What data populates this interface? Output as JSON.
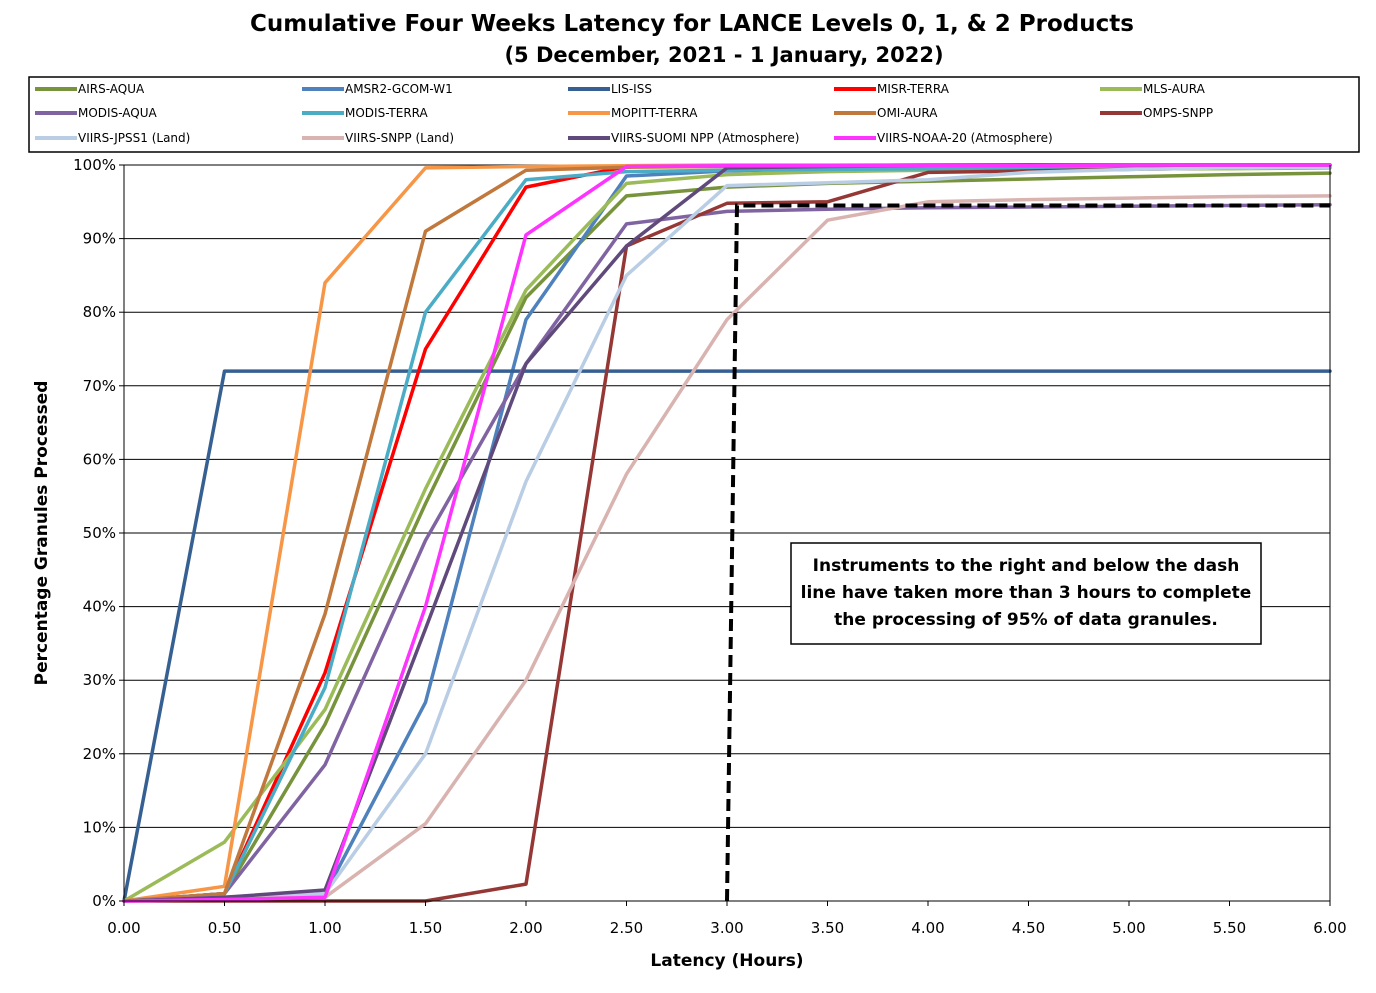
{
  "chart_data": {
    "type": "line",
    "title": "Cumulative Four Weeks Latency  for LANCE Levels 0, 1, & 2 Products",
    "subtitle": "(5 December, 2021  -  1 January, 2022)",
    "xlabel": "Latency (Hours)",
    "ylabel": "Percentage Granules Processed",
    "xlim": [
      0,
      6
    ],
    "ylim": [
      0,
      100
    ],
    "x_ticks": [
      "0.00",
      "0.50",
      "1.00",
      "1.50",
      "2.00",
      "2.50",
      "3.00",
      "3.50",
      "4.00",
      "4.50",
      "5.00",
      "5.50",
      "6.00"
    ],
    "y_ticks": [
      "0%",
      "10%",
      "20%",
      "30%",
      "40%",
      "50%",
      "60%",
      "70%",
      "80%",
      "90%",
      "100%"
    ],
    "grid": "horizontal",
    "legend_position": "top",
    "annotation": {
      "lines": [
        "Instruments to the right and below the dash",
        "line have taken more than 3 hours to complete",
        "the processing of 95% of data granules."
      ]
    },
    "threshold_line": {
      "x": [
        3.0,
        3.05,
        3.05,
        6.0
      ],
      "y": [
        0,
        94.5,
        94.5,
        94.5
      ]
    },
    "series": [
      {
        "name": "AIRS-AQUA",
        "color": "#77933c",
        "x": [
          0,
          0.5,
          1,
          1.5,
          2,
          2.5,
          3,
          3.5,
          4,
          4.5,
          5,
          5.5,
          6
        ],
        "y": [
          0,
          1,
          24,
          54,
          82,
          95.8,
          97,
          97.5,
          97.8,
          98.1,
          98.4,
          98.7,
          98.9
        ]
      },
      {
        "name": "AMSR2-GCOM-W1",
        "color": "#4f81bd",
        "x": [
          0,
          0.5,
          1,
          1.5,
          2,
          2.5,
          3,
          3.5,
          4,
          4.5,
          5,
          5.5,
          6
        ],
        "y": [
          0,
          0.5,
          1,
          27,
          79,
          98.5,
          99.2,
          99.5,
          99.6,
          99.7,
          99.8,
          99.8,
          99.9
        ]
      },
      {
        "name": "LIS-ISS",
        "color": "#376092",
        "x": [
          0,
          0.5,
          1,
          1.5,
          2,
          2.5,
          3,
          3.5,
          4,
          4.5,
          5,
          5.5,
          6
        ],
        "y": [
          0,
          72,
          72,
          72,
          72,
          72,
          72,
          72,
          72,
          72,
          72,
          72,
          72
        ]
      },
      {
        "name": "MISR-TERRA",
        "color": "#ff0000",
        "x": [
          0,
          0.5,
          1,
          1.5,
          2,
          2.5,
          3,
          3.5,
          4,
          4.5,
          5,
          5.5,
          6
        ],
        "y": [
          0,
          1,
          31,
          75,
          97,
          99.8,
          99.9,
          99.9,
          100,
          100,
          100,
          100,
          100
        ]
      },
      {
        "name": "MLS-AURA",
        "color": "#9bbb59",
        "x": [
          0,
          0.5,
          1,
          1.5,
          2,
          2.5,
          3,
          3.5,
          4,
          4.5,
          5,
          5.5,
          6
        ],
        "y": [
          0,
          8,
          26,
          56,
          83,
          97.5,
          98.7,
          99.1,
          99.3,
          99.4,
          99.5,
          99.5,
          99.6
        ]
      },
      {
        "name": "MODIS-AQUA",
        "color": "#8064a2",
        "x": [
          0,
          0.5,
          1,
          1.5,
          2,
          2.5,
          3,
          3.5,
          4,
          4.5,
          5,
          5.5,
          6
        ],
        "y": [
          0,
          1,
          18.5,
          49,
          73,
          92,
          93.7,
          94,
          94.2,
          94.3,
          94.4,
          94.5,
          94.6
        ]
      },
      {
        "name": "MODIS-TERRA",
        "color": "#4bacc6",
        "x": [
          0,
          0.5,
          1,
          1.5,
          2,
          2.5,
          3,
          3.5,
          4,
          4.5,
          5,
          5.5,
          6
        ],
        "y": [
          0,
          1,
          29,
          80,
          98,
          99.1,
          99.3,
          99.4,
          99.5,
          99.6,
          99.6,
          99.7,
          99.7
        ]
      },
      {
        "name": "MOPITT-TERRA",
        "color": "#f79646",
        "x": [
          0,
          0.5,
          1,
          1.5,
          2,
          2.5,
          3,
          3.5,
          4,
          4.5,
          5,
          5.5,
          6
        ],
        "y": [
          0,
          2,
          84,
          99.6,
          99.8,
          99.9,
          100,
          100,
          100,
          100,
          100,
          100,
          100
        ]
      },
      {
        "name": "OMI-AURA",
        "color": "#c0783c",
        "x": [
          0,
          0.5,
          1,
          1.5,
          2,
          2.5,
          3,
          3.5,
          4,
          4.5,
          5,
          5.5,
          6
        ],
        "y": [
          0,
          1,
          39,
          91,
          99.3,
          99.7,
          99.8,
          99.9,
          100,
          100,
          100,
          100,
          100
        ]
      },
      {
        "name": "OMPS-SNPP",
        "color": "#953735",
        "x": [
          0,
          0.5,
          1,
          1.5,
          2,
          2.5,
          3,
          3.5,
          4,
          4.5,
          5,
          5.5,
          6
        ],
        "y": [
          0,
          0,
          0,
          0,
          2.3,
          89,
          94.8,
          95,
          99,
          99.2,
          99.4,
          99.6,
          99.7
        ]
      },
      {
        "name": "VIIRS-JPSS1 (Land)",
        "color": "#b9cde5",
        "x": [
          0,
          0.5,
          1,
          1.5,
          2,
          2.5,
          3,
          3.5,
          4,
          4.5,
          5,
          5.5,
          6
        ],
        "y": [
          0,
          0.5,
          1,
          20,
          57,
          85,
          97.2,
          97.6,
          98,
          99,
          99.4,
          99.6,
          99.7
        ]
      },
      {
        "name": "VIIRS-SNPP (Land)",
        "color": "#d9b3b0",
        "x": [
          0,
          0.5,
          1,
          1.5,
          2,
          2.5,
          3,
          3.5,
          4,
          4.5,
          5,
          5.5,
          6
        ],
        "y": [
          0,
          0.3,
          0.5,
          10.5,
          30,
          58,
          79,
          92.5,
          95,
          95.3,
          95.5,
          95.7,
          95.8
        ]
      },
      {
        "name": "VIIRS-SUOMI NPP (Atmosphere)",
        "color": "#604a7b",
        "x": [
          0,
          0.5,
          1,
          1.5,
          2,
          2.5,
          3,
          3.5,
          4,
          4.5,
          5,
          5.5,
          6
        ],
        "y": [
          0,
          0.5,
          1.5,
          37,
          73,
          89,
          99.6,
          99.8,
          99.9,
          100,
          100,
          100,
          100
        ]
      },
      {
        "name": "VIIRS-NOAA-20 (Atmosphere)",
        "color": "#ff33ff",
        "x": [
          0,
          0.5,
          1,
          1.5,
          2,
          2.5,
          3,
          3.5,
          4,
          4.5,
          5,
          5.5,
          6
        ],
        "y": [
          0,
          0.2,
          0.5,
          40,
          90.5,
          99.8,
          99.9,
          99.9,
          99.9,
          99.9,
          100,
          100,
          100
        ]
      }
    ]
  }
}
